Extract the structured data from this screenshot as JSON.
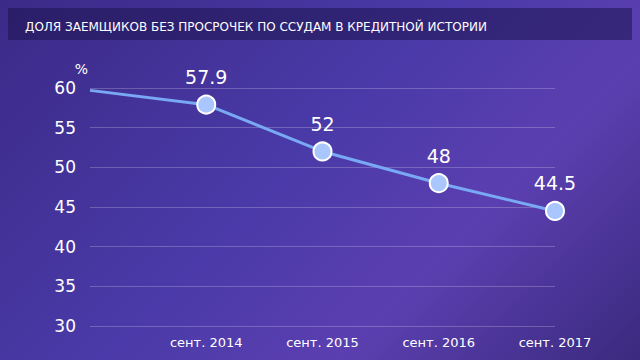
{
  "chart_data": {
    "type": "line",
    "title": "ДОЛЯ ЗАЕМЩИКОВ БЕЗ ПРОСРОЧЕК ПО ССУДАМ В КРЕДИТНОЙ ИСТОРИИ",
    "ylabel": "%",
    "categories": [
      null,
      "сент. 2014",
      "сент. 2015",
      "сент. 2016",
      "сент. 2017"
    ],
    "values": [
      59.7,
      57.9,
      52,
      48,
      44.5
    ],
    "value_labels": [
      null,
      "57.9",
      "52",
      "48",
      "44.5"
    ],
    "color": "#79a8f5",
    "marker": "circle",
    "ylim": [
      30,
      60
    ],
    "yticks": [
      30,
      35,
      40,
      45,
      50,
      55,
      60
    ],
    "grid": true,
    "data_labels": true
  }
}
